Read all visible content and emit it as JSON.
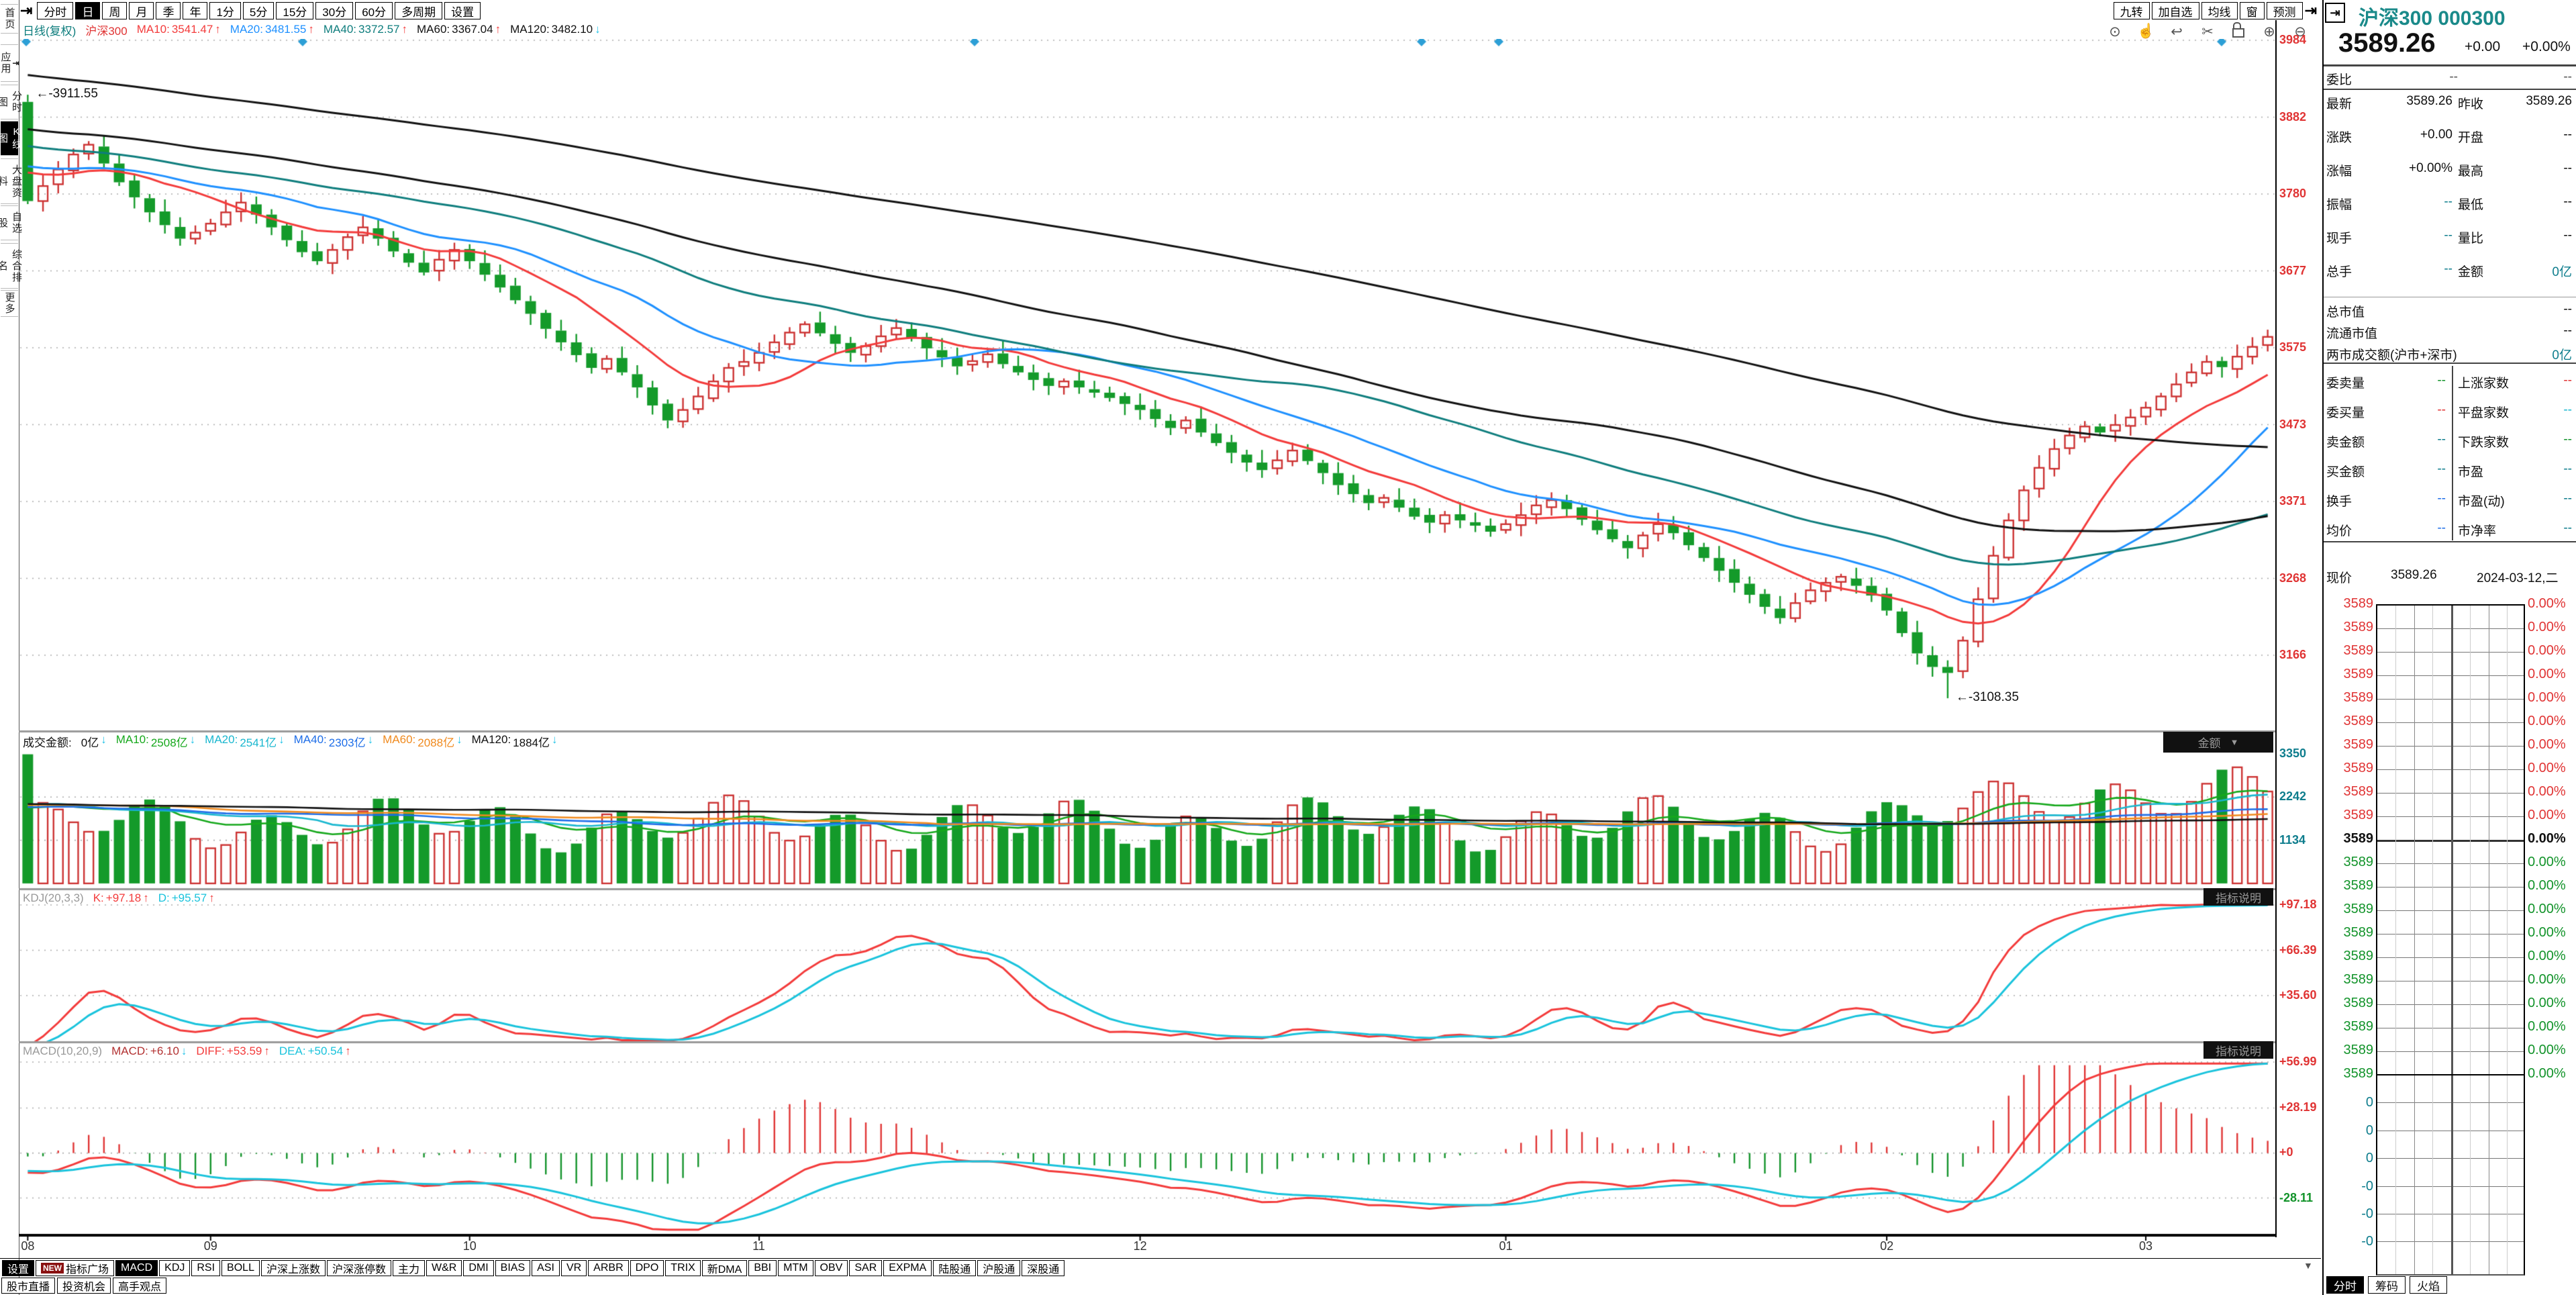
{
  "toolbar": {
    "collapse_icon": "⇥",
    "items": [
      {
        "label": "分时",
        "selected": false
      },
      {
        "label": "日",
        "selected": true
      },
      {
        "label": "周",
        "selected": false
      },
      {
        "label": "月",
        "selected": false
      },
      {
        "label": "季",
        "selected": false
      },
      {
        "label": "年",
        "selected": false
      },
      {
        "label": "1分",
        "selected": false
      },
      {
        "label": "5分",
        "selected": false
      },
      {
        "label": "15分",
        "selected": false
      },
      {
        "label": "30分",
        "selected": false
      },
      {
        "label": "60分",
        "selected": false
      },
      {
        "label": "多周期",
        "selected": false
      },
      {
        "label": "设置",
        "selected": false
      }
    ],
    "right_items": [
      "九转",
      "加自选",
      "均线",
      "窗",
      "预测"
    ],
    "right_collapse_icon": "⇥"
  },
  "chart_tools": [
    {
      "name": "eye-icon",
      "glyph": "⊙"
    },
    {
      "name": "hand-icon",
      "glyph": "☝"
    },
    {
      "name": "undo-icon",
      "glyph": "↩"
    },
    {
      "name": "scissors-icon",
      "glyph": "✂"
    },
    {
      "name": "lock-icon",
      "glyph": "LOCK"
    },
    {
      "name": "zoom-in-icon",
      "glyph": "⊕"
    },
    {
      "name": "zoom-out-icon",
      "glyph": "⊖"
    }
  ],
  "sidebar": {
    "items": [
      {
        "label": "首页",
        "selected": false,
        "icon": ""
      },
      {
        "label": "应用",
        "selected": false,
        "icon": "⇥"
      },
      {
        "label": "分时图",
        "selected": false,
        "icon": ""
      },
      {
        "label": "K线图",
        "selected": true,
        "icon": ""
      },
      {
        "label": "大盘资料",
        "selected": false,
        "icon": ""
      },
      {
        "label": "自选股",
        "selected": false,
        "icon": ""
      },
      {
        "label": "综合排名",
        "selected": false,
        "icon": ""
      },
      {
        "label": "更多",
        "selected": false,
        "icon": ""
      }
    ]
  },
  "main_legend": {
    "period": "日线(复权)",
    "period_color": "#0e7d7d",
    "symbol": "沪深300",
    "symbol_color": "#e03434",
    "items": [
      {
        "label": "MA10:",
        "value": "3541.47",
        "dir": "↑",
        "color": "#f33b3b",
        "dir_color": "#f33b3b"
      },
      {
        "label": "MA20:",
        "value": "3481.55",
        "dir": "↑",
        "color": "#1e90ff",
        "dir_color": "#f33b3b"
      },
      {
        "label": "MA40:",
        "value": "3372.57",
        "dir": "↑",
        "color": "#0e7d7d",
        "dir_color": "#f33b3b"
      },
      {
        "label": "MA60:",
        "value": "3367.04",
        "dir": "↑",
        "color": "#111111",
        "dir_color": "#f33b3b"
      },
      {
        "label": "MA120:",
        "value": "3482.10",
        "dir": "↓",
        "color": "#111111",
        "dir_color": "#27c4e8"
      }
    ]
  },
  "volume_legend": {
    "title": "成交金额:",
    "value": "0亿",
    "dir": "↓",
    "dir_color": "#27c4e8",
    "items": [
      {
        "label": "MA10:",
        "value": "2508亿",
        "dir": "↓",
        "color": "#16a81c",
        "dir_color": "#27c4e8"
      },
      {
        "label": "MA20:",
        "value": "2541亿",
        "dir": "↓",
        "color": "#19b7cf",
        "dir_color": "#27c4e8"
      },
      {
        "label": "MA40:",
        "value": "2303亿",
        "dir": "↓",
        "color": "#1e6ee8",
        "dir_color": "#27c4e8"
      },
      {
        "label": "MA60:",
        "value": "2088亿",
        "dir": "↓",
        "color": "#f08a1e",
        "dir_color": "#27c4e8"
      },
      {
        "label": "MA120:",
        "value": "1884亿",
        "dir": "↓",
        "color": "#111111",
        "dir_color": "#27c4e8"
      }
    ]
  },
  "kdj_legend": {
    "name": "KDJ(20,3,3)",
    "items": [
      {
        "label": "K:",
        "value": "+97.18",
        "dir": "↑",
        "color": "#f33b3b",
        "dir_color": "#f33b3b"
      },
      {
        "label": "D:",
        "value": "+95.57",
        "dir": "↑",
        "color": "#19c3dc",
        "dir_color": "#f33b3b"
      }
    ]
  },
  "macd_legend": {
    "name": "MACD(10,20,9)",
    "items": [
      {
        "label": "MACD:",
        "value": "+6.10",
        "dir": "↓",
        "color": "#b23030",
        "dir_color": "#27c4e8"
      },
      {
        "label": "DIFF:",
        "value": "+53.59",
        "dir": "↑",
        "color": "#f33b3b",
        "dir_color": "#f33b3b"
      },
      {
        "label": "DEA:",
        "value": "+50.54",
        "dir": "↑",
        "color": "#19c3dc",
        "dir_color": "#f33b3b"
      }
    ]
  },
  "price_axis": {
    "labels": [
      "3984",
      "3882",
      "3780",
      "3677",
      "3575",
      "3473",
      "3371",
      "3268",
      "3166"
    ],
    "color": "#e03434"
  },
  "volume_axis": {
    "labels": [
      "3350",
      "2242",
      "1134"
    ],
    "color": "#0e7d8d"
  },
  "kdj_axis": {
    "labels": [
      "+97.18",
      "+66.39",
      "+35.60"
    ],
    "color": "#e03434"
  },
  "macd_axis": {
    "labels": [
      {
        "t": "+56.99",
        "c": "#e03434"
      },
      {
        "t": "+28.19",
        "c": "#e03434"
      },
      {
        "t": "+0",
        "c": "#e03434"
      },
      {
        "t": "-28.11",
        "c": "#12932a"
      }
    ]
  },
  "x_axis": {
    "months": [
      "08",
      "09",
      "10",
      "11",
      "12",
      "01",
      "02",
      "03"
    ]
  },
  "panel_widgets": {
    "amount_dropdown": "金额",
    "dropdown_arrow": "▼",
    "indicator_info": "指标说明",
    "corner_arrow": "▼"
  },
  "annotations": {
    "high": "3911.55",
    "low": "3108.35",
    "arrow": "←-"
  },
  "indicator_bar": {
    "settings": "设置",
    "new_badge": "NEW",
    "plaza": "指标广场",
    "selected": "MACD",
    "tabs": [
      "MACD",
      "KDJ",
      "RSI",
      "BOLL",
      "沪深上涨数",
      "沪深涨停数",
      "主力",
      "W&R",
      "DMI",
      "BIAS",
      "ASI",
      "VR",
      "ARBR",
      "DPO",
      "TRIX",
      "新DMA",
      "BBI",
      "MTM",
      "OBV",
      "SAR",
      "EXPMA",
      "陆股通",
      "沪股通",
      "深股通"
    ]
  },
  "bottom_links": [
    "股市直播",
    "投资机会",
    "高手观点"
  ],
  "quote": {
    "collapse_icon": "⇥",
    "symbol": "沪深300",
    "code": "000300",
    "price": "3589.26",
    "change": "+0.00",
    "change_pct": "+0.00%",
    "weibi_label": "委比",
    "weibi_value": "--",
    "weibi_value2": "--",
    "grid1": [
      {
        "l": "最新",
        "v": "3589.26",
        "vc": "ck",
        "l2": "昨收",
        "v2": "3589.26",
        "v2c": "ck"
      },
      {
        "l": "涨跌",
        "v": "+0.00",
        "vc": "ck",
        "l2": "开盘",
        "v2": "--",
        "v2c": "ck"
      },
      {
        "l": "涨幅",
        "v": "+0.00%",
        "vc": "ck",
        "l2": "最高",
        "v2": "--",
        "v2c": "ck"
      },
      {
        "l": "振幅",
        "v": "--",
        "vc": "ct",
        "l2": "最低",
        "v2": "--",
        "v2c": "ck"
      },
      {
        "l": "现手",
        "v": "--",
        "vc": "ct",
        "l2": "量比",
        "v2": "--",
        "v2c": "ck"
      },
      {
        "l": "总手",
        "v": "--",
        "vc": "ct",
        "l2": "金额",
        "v2": "0亿",
        "v2c": "ct"
      }
    ],
    "rows2": [
      {
        "l": "总市值",
        "v": "--",
        "vc": "ck"
      },
      {
        "l": "流通市值",
        "v": "--",
        "vc": "ck"
      },
      {
        "l": "两市成交额(沪市+深市)",
        "v": "0亿",
        "vc": "ct"
      }
    ],
    "grid3_left": [
      {
        "l": "委卖量",
        "v": "--",
        "vc": "cg"
      },
      {
        "l": "委买量",
        "v": "--",
        "vc": "cr"
      },
      {
        "l": "卖金额",
        "v": "--",
        "vc": "ct"
      },
      {
        "l": "买金额",
        "v": "--",
        "vc": "ct"
      },
      {
        "l": "换手",
        "v": "--",
        "vc": "cb"
      },
      {
        "l": "均价",
        "v": "--",
        "vc": "cb"
      }
    ],
    "grid3_right": [
      {
        "l": "上涨家数",
        "v": "--",
        "vc": "cr"
      },
      {
        "l": "平盘家数",
        "v": "--",
        "vc": "cc"
      },
      {
        "l": "下跌家数",
        "v": "--",
        "vc": "cg"
      },
      {
        "l": "市盈",
        "v": "--",
        "vc": "ct"
      },
      {
        "l": "市盈(动)",
        "v": "--",
        "vc": "ct"
      },
      {
        "l": "市净率",
        "v": "--",
        "vc": "ct"
      }
    ],
    "now_label": "现价",
    "now_value": "3589.26",
    "date": "2024-03-12,二"
  },
  "mini_chart": {
    "price_label": "3589",
    "pct_label": "0.00%",
    "rows_above": 10,
    "rows_below": 10,
    "volume_labels": [
      "0",
      "0",
      "0",
      "-0",
      "-0",
      "-0"
    ],
    "tabs": [
      {
        "label": "分时",
        "selected": true
      },
      {
        "label": "筹码",
        "selected": false
      },
      {
        "label": "火焰",
        "selected": false
      }
    ]
  },
  "chart_data": {
    "type": "candlestick",
    "title": "沪深300 日线(复权)",
    "xlabel_months": [
      "08",
      "09",
      "10",
      "11",
      "12",
      "01",
      "02",
      "03"
    ],
    "month_start_index": [
      0,
      12,
      29,
      48,
      73,
      97,
      122,
      139
    ],
    "price_axis_ticks": [
      3984,
      3882,
      3780,
      3677,
      3575,
      3473,
      3371,
      3268,
      3166
    ],
    "volume_axis_ticks": [
      3350,
      2242,
      1134
    ],
    "kdj_axis_ticks": [
      97.18,
      66.39,
      35.6
    ],
    "macd_axis_ticks": [
      56.99,
      28.19,
      0,
      -28.11
    ],
    "first_open": 3902,
    "high_extreme": 3911.55,
    "low_extreme": 3108.35,
    "last_close": 3589.26,
    "event_marker_x_px": [
      39,
      451,
      1452,
      2118,
      2233,
      3310
    ],
    "closes": [
      3770,
      3790,
      3812,
      3832,
      3845,
      3820,
      3795,
      3775,
      3755,
      3738,
      3720,
      3728,
      3740,
      3755,
      3768,
      3752,
      3735,
      3718,
      3702,
      3690,
      3705,
      3722,
      3735,
      3720,
      3703,
      3688,
      3675,
      3692,
      3705,
      3690,
      3672,
      3655,
      3638,
      3620,
      3600,
      3582,
      3565,
      3548,
      3560,
      3542,
      3522,
      3498,
      3478,
      3492,
      3510,
      3530,
      3548,
      3556,
      3568,
      3582,
      3595,
      3606,
      3594,
      3580,
      3568,
      3577,
      3590,
      3601,
      3588,
      3574,
      3562,
      3550,
      3557,
      3566,
      3553,
      3542,
      3532,
      3524,
      3530,
      3522,
      3515,
      3508,
      3500,
      3492,
      3480,
      3468,
      3478,
      3462,
      3448,
      3435,
      3422,
      3412,
      3425,
      3438,
      3424,
      3408,
      3392,
      3380,
      3368,
      3375,
      3362,
      3350,
      3342,
      3352,
      3345,
      3338,
      3330,
      3340,
      3352,
      3365,
      3372,
      3360,
      3346,
      3332,
      3320,
      3308,
      3325,
      3340,
      3328,
      3312,
      3295,
      3278,
      3262,
      3246,
      3230,
      3215,
      3235,
      3252,
      3262,
      3270,
      3258,
      3245,
      3225,
      3195,
      3168,
      3150,
      3142,
      3185,
      3240,
      3298,
      3345,
      3385,
      3415,
      3440,
      3458,
      3470,
      3462,
      3472,
      3482,
      3495,
      3510,
      3526,
      3542,
      3556,
      3549,
      3563,
      3576,
      3589.26
    ]
  }
}
